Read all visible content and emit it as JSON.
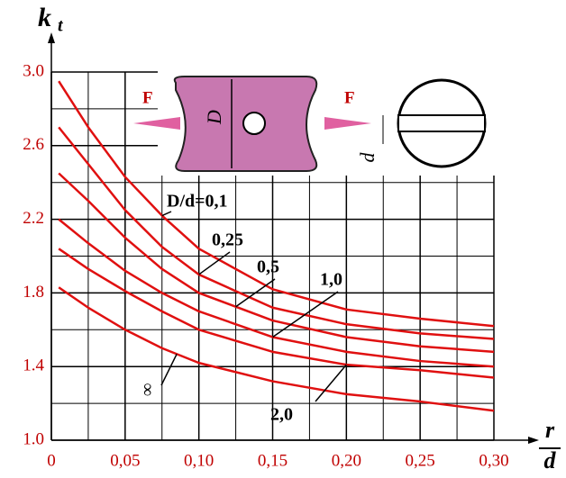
{
  "chart_data": {
    "type": "line",
    "x_label_top": "r",
    "x_label_bottom": "d",
    "y_label": "k",
    "y_label_sub": "t",
    "x": [
      0.005,
      0.025,
      0.05,
      0.075,
      0.1,
      0.15,
      0.2,
      0.25,
      0.3
    ],
    "series": [
      {
        "name": "D/d=0,1",
        "color": "#e01010",
        "values": [
          2.95,
          2.7,
          2.43,
          2.22,
          2.04,
          1.82,
          1.71,
          1.66,
          1.62
        ]
      },
      {
        "name": "0,25",
        "color": "#e01010",
        "values": [
          2.7,
          2.5,
          2.25,
          2.05,
          1.9,
          1.72,
          1.63,
          1.58,
          1.55
        ]
      },
      {
        "name": "0,5",
        "color": "#e01010",
        "values": [
          2.45,
          2.3,
          2.1,
          1.93,
          1.8,
          1.65,
          1.56,
          1.51,
          1.48
        ]
      },
      {
        "name": "1,0",
        "color": "#e01010",
        "values": [
          2.2,
          2.07,
          1.92,
          1.8,
          1.7,
          1.56,
          1.48,
          1.43,
          1.4
        ]
      },
      {
        "name": "2,0",
        "color": "#e01010",
        "values": [
          2.04,
          1.93,
          1.81,
          1.7,
          1.6,
          1.48,
          1.41,
          1.38,
          1.34
        ]
      },
      {
        "name": "∞",
        "color": "#e01010",
        "values": [
          1.83,
          1.72,
          1.6,
          1.5,
          1.42,
          1.32,
          1.25,
          1.21,
          1.16
        ]
      }
    ],
    "xlim": [
      0,
      0.3
    ],
    "ylim": [
      1,
      3
    ],
    "xticks": [
      {
        "value": 0,
        "label": "0"
      },
      {
        "value": 0.05,
        "label": "0,05"
      },
      {
        "value": 0.1,
        "label": "0,10"
      },
      {
        "value": 0.15,
        "label": "0,15"
      },
      {
        "value": 0.2,
        "label": "0,20"
      },
      {
        "value": 0.25,
        "label": "0,25"
      },
      {
        "value": 0.3,
        "label": "0,30"
      }
    ],
    "yticks": [
      {
        "value": 1,
        "label": "1.0"
      },
      1.4,
      1.8,
      2.2,
      2.6,
      {
        "value": 3,
        "label": "3.0"
      }
    ],
    "xgrid_minor": [
      0.025,
      0.075,
      0.125,
      0.175,
      0.225,
      0.275
    ],
    "ygrid_minor": [
      1.2,
      1.6,
      2,
      2.4,
      2.8
    ],
    "grid": true,
    "diagram_labels": [
      "F",
      "F",
      "D",
      "d"
    ]
  }
}
